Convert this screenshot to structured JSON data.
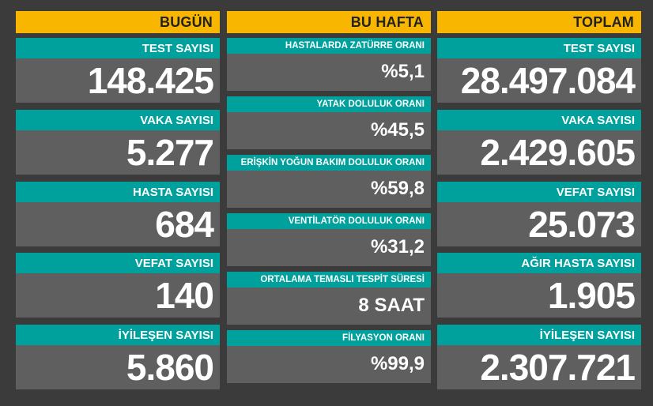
{
  "today": {
    "header": "BUGÜN",
    "cards": [
      {
        "label": "TEST SAYISI",
        "value": "148.425"
      },
      {
        "label": "VAKA SAYISI",
        "value": "5.277"
      },
      {
        "label": "HASTA SAYISI",
        "value": "684"
      },
      {
        "label": "VEFAT SAYISI",
        "value": "140"
      },
      {
        "label": "İYİLEŞEN SAYISI",
        "value": "5.860"
      }
    ]
  },
  "week": {
    "header": "BU HAFTA",
    "cards": [
      {
        "label": "HASTALARDA ZATÜRRE ORANI",
        "value": "%5,1"
      },
      {
        "label": "YATAK DOLULUK ORANI",
        "value": "%45,5"
      },
      {
        "label": "ERİŞKİN YOĞUN BAKIM DOLULUK ORANI",
        "value": "%59,8"
      },
      {
        "label": "VENTİLATÖR DOLULUK ORANI",
        "value": "%31,2"
      },
      {
        "label": "ORTALAMA TEMASLI TESPİT SÜRESİ",
        "value": "8 SAAT"
      },
      {
        "label": "FİLYASYON ORANI",
        "value": "%99,9"
      }
    ]
  },
  "total": {
    "header": "TOPLAM",
    "cards": [
      {
        "label": "TEST SAYISI",
        "value": "28.497.084"
      },
      {
        "label": "VAKA SAYISI",
        "value": "2.429.605"
      },
      {
        "label": "VEFAT SAYISI",
        "value": "25.073"
      },
      {
        "label": "AĞIR HASTA SAYISI",
        "value": "1.905"
      },
      {
        "label": "İYİLEŞEN SAYISI",
        "value": "2.307.721"
      }
    ]
  },
  "colors": {
    "header_bg": "#f9b600",
    "label_bg": "#00a09d",
    "card_bg": "#5f5f5f",
    "page_bg": "#3b3b3b"
  }
}
